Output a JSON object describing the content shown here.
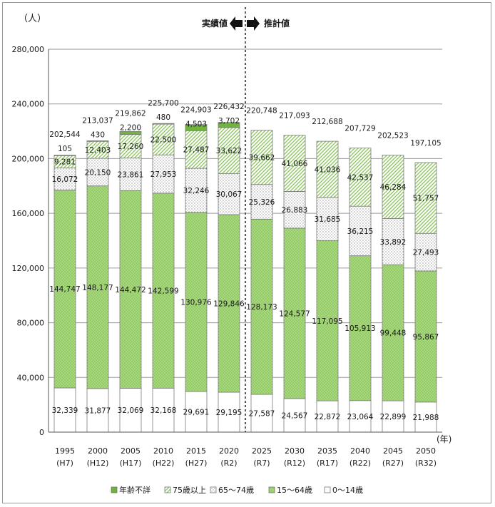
{
  "chart_data": {
    "type": "bar",
    "stacked": true,
    "y_unit": "（人）",
    "x_unit": "(年)",
    "ylim": [
      0,
      280000
    ],
    "y_ticks": [
      "0",
      "40,000",
      "80,000",
      "120,000",
      "160,000",
      "200,000",
      "240,000",
      "280,000"
    ],
    "y_tick_values": [
      0,
      40000,
      80000,
      120000,
      160000,
      200000,
      240000,
      280000
    ],
    "grid": true,
    "legend_position": "bottom",
    "divider": {
      "after_index": 5,
      "left_label": "実績値",
      "right_label": "推計値"
    },
    "categories": [
      "1995",
      "2000",
      "2005",
      "2010",
      "2015",
      "2020",
      "2025",
      "2030",
      "2035",
      "2040",
      "2045",
      "2050"
    ],
    "categories_era": [
      "(H7)",
      "(H12)",
      "(H17)",
      "(H22)",
      "(H27)",
      "(R2)",
      "(R7)",
      "(R12)",
      "(R17)",
      "(R22)",
      "(R27)",
      "(R32)"
    ],
    "totals": [
      202544,
      213037,
      219862,
      225700,
      224903,
      226432,
      220748,
      217093,
      212688,
      207729,
      202523,
      197105
    ],
    "totals_text": [
      "202,544",
      "213,037",
      "219,862",
      "225,700",
      "224,903",
      "226,432",
      "220,748",
      "217,093",
      "212,688",
      "207,729",
      "202,523",
      "197,105"
    ],
    "series": [
      {
        "name": "0～14歳",
        "color": "#ffffff",
        "pattern": "none",
        "values": [
          32339,
          31877,
          32069,
          32168,
          29691,
          29195,
          27587,
          24567,
          22872,
          23064,
          22899,
          21988
        ],
        "labels": [
          "32,339",
          "31,877",
          "32,069",
          "32,168",
          "29,691",
          "29,195",
          "27,587",
          "24,567",
          "22,872",
          "23,064",
          "22,899",
          "21,988"
        ]
      },
      {
        "name": "15～64歳",
        "color": "#8dc85a",
        "pattern": "dots",
        "values": [
          144747,
          148177,
          144472,
          142599,
          130976,
          129846,
          128173,
          124577,
          117095,
          105913,
          99448,
          95867
        ],
        "labels": [
          "144,747",
          "148,177",
          "144,472",
          "142,599",
          "130,976",
          "129,846",
          "128,173",
          "124,577",
          "117,095",
          "105,913",
          "99,448",
          "95,867"
        ]
      },
      {
        "name": "65～74歳",
        "color": "#ffffff",
        "pattern": "fine-dots",
        "values": [
          16072,
          20150,
          23861,
          27953,
          32246,
          30067,
          25326,
          26883,
          31685,
          36215,
          33892,
          27493
        ],
        "labels": [
          "16,072",
          "20,150",
          "23,861",
          "27,953",
          "32,246",
          "30,067",
          "25,326",
          "26,883",
          "31,685",
          "36,215",
          "33,892",
          "27,493"
        ]
      },
      {
        "name": "75歳以上",
        "color": "#c6e3ad",
        "pattern": "diagonal",
        "values": [
          9281,
          12403,
          17260,
          22500,
          27487,
          33622,
          39662,
          41066,
          41036,
          42537,
          46284,
          51757
        ],
        "labels": [
          "9,281",
          "12,403",
          "17,260",
          "22,500",
          "27,487",
          "33,622",
          "39,662",
          "41,066",
          "41,036",
          "42,537",
          "46,284",
          "51,757"
        ]
      },
      {
        "name": "年齢不詳",
        "color": "#6fb43c",
        "pattern": "solid",
        "values": [
          105,
          430,
          2200,
          480,
          4503,
          3702,
          0,
          0,
          0,
          0,
          0,
          0
        ],
        "labels": [
          "105",
          "430",
          "2,200",
          "480",
          "4,503",
          "3,702",
          "",
          "",
          "",
          "",
          "",
          ""
        ]
      }
    ],
    "legend_order": [
      "年齢不詳",
      "75歳以上",
      "65～74歳",
      "15～64歳",
      "0～14歳"
    ]
  }
}
